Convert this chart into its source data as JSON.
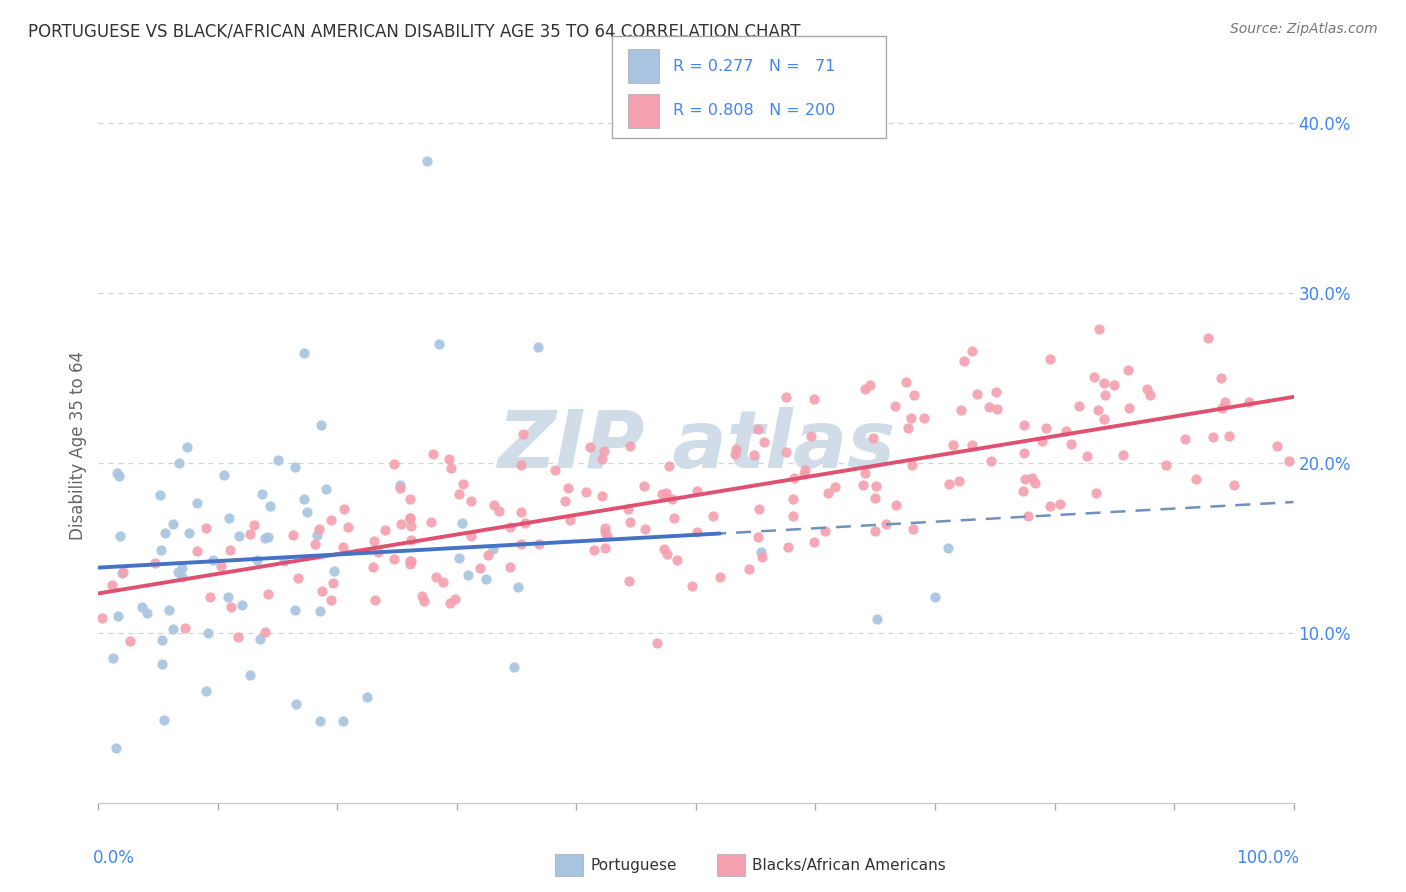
{
  "title": "PORTUGUESE VS BLACK/AFRICAN AMERICAN DISABILITY AGE 35 TO 64 CORRELATION CHART",
  "source": "Source: ZipAtlas.com",
  "ylabel": "Disability Age 35 to 64",
  "yticks": [
    "10.0%",
    "20.0%",
    "30.0%",
    "40.0%"
  ],
  "ytick_vals": [
    0.1,
    0.2,
    0.3,
    0.4
  ],
  "xlim": [
    0.0,
    1.0
  ],
  "ylim": [
    0.0,
    0.42
  ],
  "portuguese_R": 0.277,
  "portuguese_N": 71,
  "black_R": 0.808,
  "black_N": 200,
  "portuguese_color": "#a8c4e0",
  "black_color": "#f4a0b0",
  "portuguese_line_color": "#4472C4",
  "black_line_color": "#E05070",
  "dashed_line_color": "#7090C0",
  "background_color": "#ffffff",
  "grid_color": "#cccccc",
  "title_color": "#333333",
  "axis_label_color": "#4285f4",
  "legend_color_blue": "#4285f4",
  "legend_text_color": "#333333",
  "watermark_color": "#d0dce8"
}
